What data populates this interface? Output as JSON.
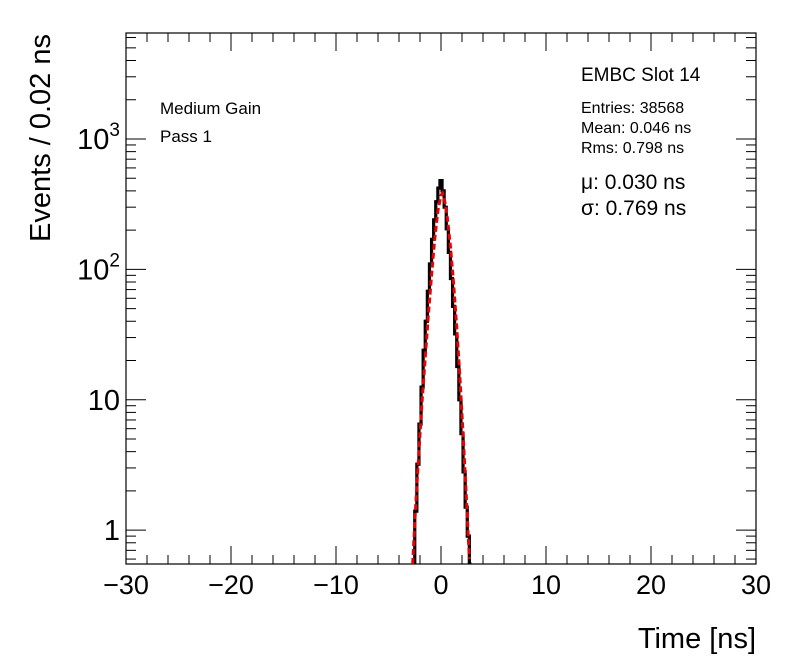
{
  "chart_data": {
    "type": "line",
    "title": "",
    "xlabel": "Time [ns]",
    "ylabel": "Events / 0.02 ns",
    "xlim": [
      -30,
      30
    ],
    "ylim": [
      0.55,
      6500
    ],
    "yscale": "log",
    "grid": false,
    "x_tick_labels": [
      "−30",
      "−20",
      "−10",
      "0",
      "10",
      "20",
      "30"
    ],
    "y_ticks": [
      {
        "value": 1,
        "label": "1",
        "sup": ""
      },
      {
        "value": 10,
        "label": "10",
        "sup": ""
      },
      {
        "value": 100,
        "label": "10",
        "sup": "2"
      },
      {
        "value": 1000,
        "label": "10",
        "sup": "3"
      }
    ],
    "annotations_left": [
      "Medium Gain",
      "Pass 1"
    ],
    "stats": {
      "title": "EMBC Slot 14",
      "entries": "Entries: 38568",
      "mean": "Mean: 0.046 ns",
      "rms": "Rms: 0.798 ns",
      "mu": "μ: 0.030 ns",
      "sigma": "σ: 0.769 ns"
    },
    "series": [
      {
        "type": "histogram",
        "color": "#000000",
        "x": [
          -2.6,
          -2.4,
          -2.2,
          -2.0,
          -1.8,
          -1.6,
          -1.4,
          -1.2,
          -1.0,
          -0.8,
          -0.6,
          -0.4,
          -0.2,
          0.0,
          0.2,
          0.4,
          0.6,
          0.8,
          1.0,
          1.2,
          1.4,
          1.6,
          1.8,
          2.0,
          2.2,
          2.4,
          2.6,
          2.8
        ],
        "values": [
          0.55,
          1.4,
          3.2,
          6.5,
          12.5,
          24,
          40,
          68,
          110,
          170,
          240,
          330,
          420,
          480,
          400,
          300,
          205,
          135,
          85,
          52,
          32,
          18,
          10,
          5.5,
          2.8,
          1.5,
          0.9,
          0.55
        ]
      },
      {
        "type": "fit",
        "color": "#ee0000",
        "x": [
          -2.7,
          -2.4,
          -2.1,
          -1.8,
          -1.5,
          -1.2,
          -0.9,
          -0.6,
          -0.3,
          0.0,
          0.15,
          0.3,
          0.6,
          0.9,
          1.2,
          1.5,
          1.8,
          2.1,
          2.4,
          2.7
        ],
        "values": [
          0.55,
          1.6,
          4.0,
          9.8,
          21,
          45,
          90,
          170,
          280,
          370,
          385,
          355,
          250,
          150,
          78,
          36,
          15,
          5.5,
          1.9,
          0.6
        ]
      }
    ]
  }
}
